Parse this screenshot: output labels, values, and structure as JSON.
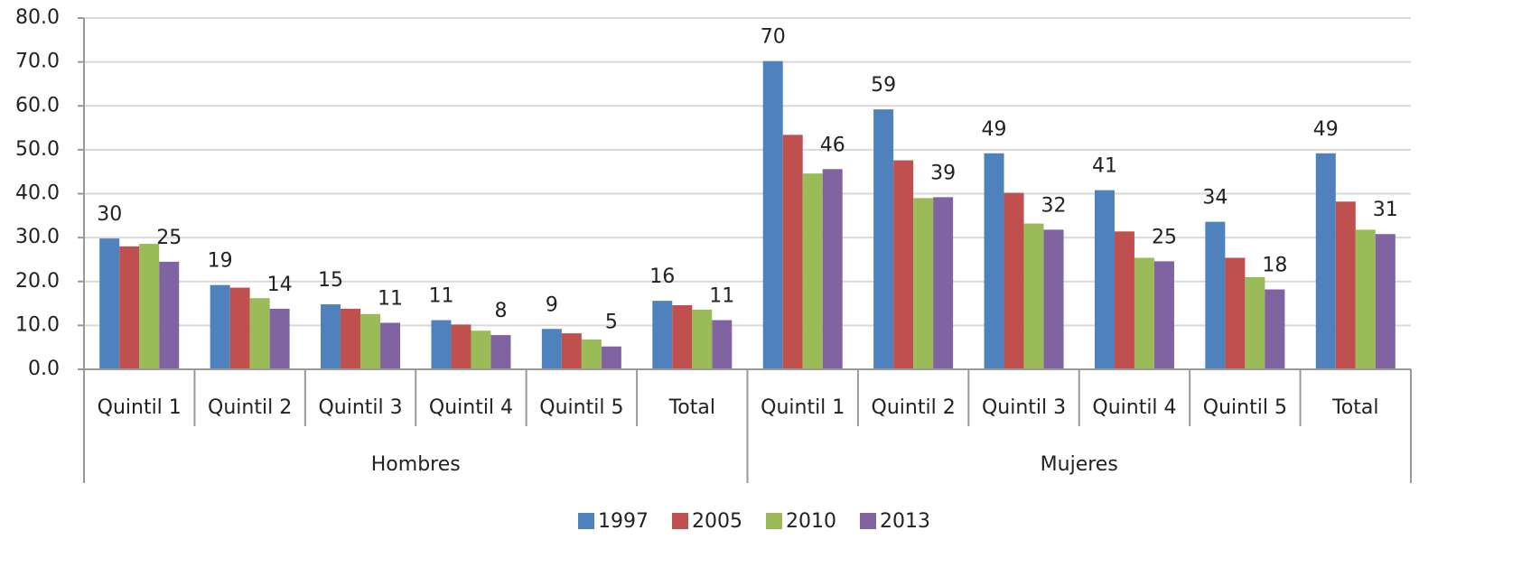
{
  "chart_data": {
    "type": "bar",
    "groups": [
      {
        "name": "Hombres",
        "categories": [
          "Quintil 1",
          "Quintil 2",
          "Quintil 3",
          "Quintil 4",
          "Quintil 5",
          "Total"
        ]
      },
      {
        "name": "Mujeres",
        "categories": [
          "Quintil 1",
          "Quintil 2",
          "Quintil 3",
          "Quintil 4",
          "Quintil 5",
          "Total"
        ]
      }
    ],
    "series": [
      {
        "name": "1997",
        "color": "#4f81bd",
        "values": [
          29.8,
          19.2,
          14.8,
          11.2,
          9.2,
          15.6,
          70.2,
          59.2,
          49.2,
          40.8,
          33.6,
          49.2
        ],
        "value_labels": [
          "30",
          "19",
          "15",
          "11",
          "9",
          "16",
          "70",
          "59",
          "49",
          "41",
          "34",
          "49"
        ]
      },
      {
        "name": "2005",
        "color": "#c0504d",
        "values": [
          28.0,
          18.6,
          13.8,
          10.2,
          8.2,
          14.6,
          53.4,
          47.6,
          40.2,
          31.4,
          25.4,
          38.2
        ]
      },
      {
        "name": "2010",
        "color": "#9bbb59",
        "values": [
          28.6,
          16.2,
          12.6,
          8.8,
          6.8,
          13.6,
          44.6,
          39.0,
          33.2,
          25.4,
          21.0,
          31.8
        ]
      },
      {
        "name": "2013",
        "color": "#8064a2",
        "values": [
          24.5,
          13.8,
          10.6,
          7.8,
          5.2,
          11.2,
          45.6,
          39.2,
          31.8,
          24.6,
          18.2,
          30.8
        ],
        "value_labels": [
          "25",
          "14",
          "11",
          "8",
          "5",
          "11",
          "46",
          "39",
          "32",
          "25",
          "18",
          "31"
        ]
      }
    ],
    "ylim": [
      0,
      80
    ],
    "yticks": [
      {
        "value": 0,
        "label": "0.0"
      },
      {
        "value": 10,
        "label": "10.0"
      },
      {
        "value": 20,
        "label": "20.0"
      },
      {
        "value": 30,
        "label": "30.0"
      },
      {
        "value": 40,
        "label": "40.0"
      },
      {
        "value": 50,
        "label": "50.0"
      },
      {
        "value": 60,
        "label": "60.0"
      },
      {
        "value": 70,
        "label": "70.0"
      },
      {
        "value": 80,
        "label": "80.0"
      }
    ],
    "grid": true,
    "legend": "bottom"
  }
}
